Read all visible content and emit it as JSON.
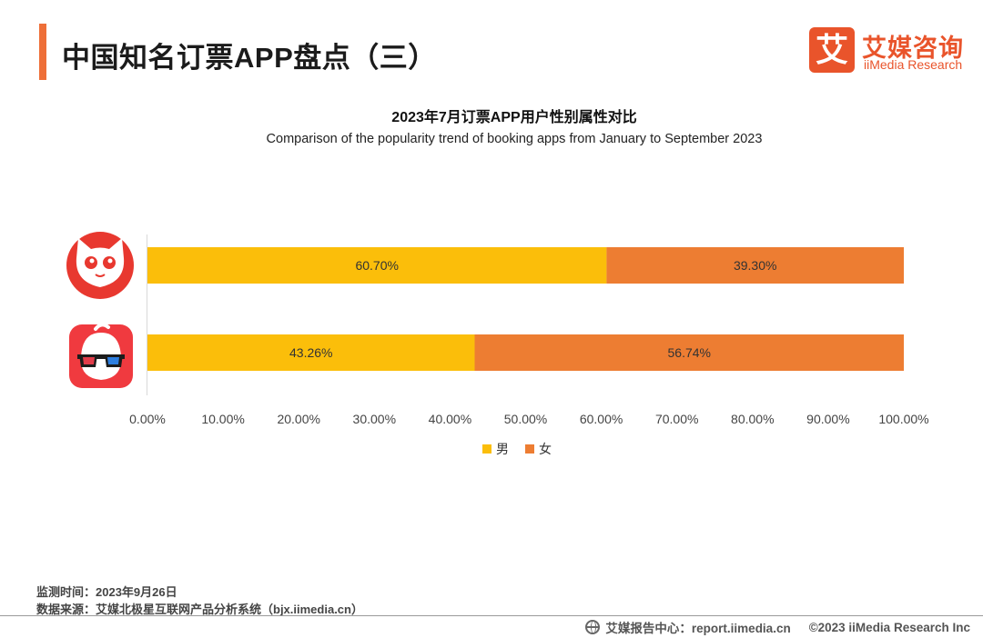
{
  "header": {
    "title": "中国知名订票APP盘点（三）",
    "logo_mark": "艾",
    "logo_cn": "艾媒咨询",
    "logo_en": "iiMedia Research",
    "accent_color": "#ee6f38",
    "brand_color": "#e9542b"
  },
  "chart_data": {
    "type": "bar",
    "orientation": "horizontal",
    "stacked": true,
    "title": "2023年7月订票APP用户性别属性对比",
    "subtitle": "Comparison of the popularity trend of booking apps from January to September 2023",
    "categories": [
      "猫眼",
      "淘票票"
    ],
    "category_icons": [
      "maoyan-cat-icon",
      "taopiaopiao-3d-glasses-icon"
    ],
    "series": [
      {
        "name": "男",
        "color": "#fbbe0a",
        "values": [
          60.7,
          43.26
        ],
        "labels": [
          "60.70%",
          "43.26%"
        ]
      },
      {
        "name": "女",
        "color": "#ed7d32",
        "values": [
          39.3,
          56.74
        ],
        "labels": [
          "39.30%",
          "56.74%"
        ]
      }
    ],
    "xlim": [
      0,
      100
    ],
    "x_ticks": [
      0,
      10,
      20,
      30,
      40,
      50,
      60,
      70,
      80,
      90,
      100
    ],
    "x_tick_labels": [
      "0.00%",
      "10.00%",
      "20.00%",
      "30.00%",
      "40.00%",
      "50.00%",
      "60.00%",
      "70.00%",
      "80.00%",
      "90.00%",
      "100.00%"
    ],
    "grid": false,
    "legend": "bottom"
  },
  "footer": {
    "monitor_time": "监测时间：2023年9月26日",
    "data_source": "数据来源：艾媒北极星互联网产品分析系统（bjx.iimedia.cn）",
    "report_center": "艾媒报告中心：report.iimedia.cn",
    "copyright": "©2023  iiMedia Research  Inc"
  }
}
